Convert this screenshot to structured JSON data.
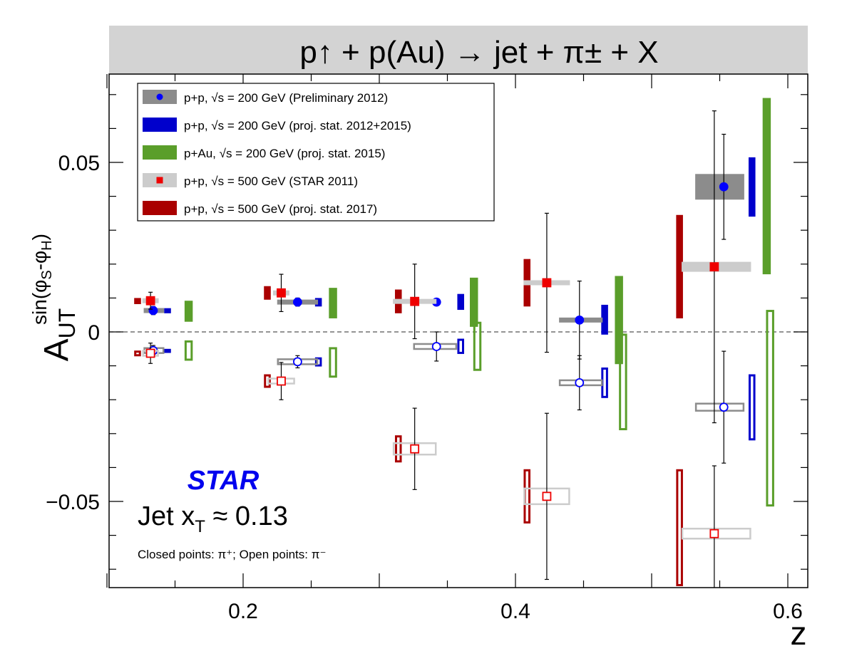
{
  "chart_data": {
    "type": "scatter",
    "title": "p↑ + p(Au) → jet + π± + X",
    "xlabel": "z",
    "ylabel": "A_UT^sin(φS-φH)",
    "xlim": [
      0.09,
      0.62
    ],
    "ylim": [
      -0.075,
      0.072
    ],
    "xticks": [
      {
        "v": 0.2,
        "label": "0.2"
      },
      {
        "v": 0.4,
        "label": "0.4"
      },
      {
        "v": 0.6,
        "label": "0.6"
      }
    ],
    "yticks": [
      {
        "v": 0.05,
        "label": "0.05"
      },
      {
        "v": 0,
        "label": "0"
      },
      {
        "v": -0.05,
        "label": "−0.05"
      }
    ],
    "experiment": "STAR",
    "annotation": "Jet x",
    "annotation_sub": "T",
    "annotation_tail": " ≈ 0.13",
    "note": "Closed points: π⁺; Open points: π⁻",
    "legend_position": "top-left",
    "legend": [
      {
        "label": "p+p, √s = 200 GeV (Preliminary 2012)",
        "swatch": "#8c8c8c",
        "marker": "circle",
        "marker_color": "#0000ff"
      },
      {
        "label": "p+p, √s = 200 GeV (proj. stat. 2012+2015)",
        "swatch": "#0000cc",
        "marker": "none",
        "marker_color": ""
      },
      {
        "label": "p+Au, √s = 200 GeV (proj. stat. 2015)",
        "swatch": "#5a9e2a",
        "marker": "none",
        "marker_color": ""
      },
      {
        "label": "p+p, √s = 500 GeV (STAR 2011)",
        "swatch": "#cccccc",
        "marker": "square",
        "marker_color": "#ee0000"
      },
      {
        "label": "p+p, √s = 500 GeV (proj. stat. 2017)",
        "swatch": "#aa0000",
        "marker": "none",
        "marker_color": ""
      }
    ],
    "colors": {
      "pp200_prelim_sys": "#8c8c8c",
      "pp200_marker": "#0000ff",
      "pp200_proj": "#0000cc",
      "pAu200_proj": "#5a9e2a",
      "pp500_sys": "#cccccc",
      "pp500_marker": "#ee0000",
      "pp500_proj": "#aa0000"
    },
    "series": [
      {
        "name": "p+p, √s = 200 GeV (Preliminary 2012)",
        "charge": "pi+",
        "points": [
          {
            "x": 0.134,
            "y": 0.0063,
            "err": 0.0012,
            "sys_x0": 0.127,
            "sys_x1": 0.142
          },
          {
            "x": 0.24,
            "y": 0.0088,
            "err": 0.0012,
            "sys_x0": 0.225,
            "sys_x1": 0.255
          },
          {
            "x": 0.342,
            "y": 0.0088,
            "err": 0.0
          },
          {
            "x": 0.447,
            "y": 0.0035,
            "err": 0.0115,
            "sys_x0": 0.432,
            "sys_x1": 0.464
          },
          {
            "x": 0.553,
            "y": 0.0428,
            "err": 0.0155,
            "sys_x0": 0.532,
            "sys_x1": 0.568
          }
        ]
      },
      {
        "name": "p+p, √s = 200 GeV (Preliminary 2012)",
        "charge": "pi-",
        "points": [
          {
            "x": 0.134,
            "y": -0.0055,
            "err": 0.0015,
            "sys_x0": 0.127,
            "sys_x1": 0.142
          },
          {
            "x": 0.24,
            "y": -0.0088,
            "err": 0.0018,
            "sys_x0": 0.225,
            "sys_x1": 0.255
          },
          {
            "x": 0.342,
            "y": -0.0043,
            "err": 0.0043,
            "sys_x0": 0.325,
            "sys_x1": 0.357
          },
          {
            "x": 0.447,
            "y": -0.015,
            "err": 0.008,
            "sys_x0": 0.432,
            "sys_x1": 0.464
          },
          {
            "x": 0.553,
            "y": -0.0222,
            "err": 0.0165,
            "sys_x0": 0.532,
            "sys_x1": 0.568
          }
        ]
      },
      {
        "name": "p+p, √s = 500 GeV (STAR 2011)",
        "charge": "pi+",
        "points": [
          {
            "x": 0.132,
            "y": 0.0092,
            "err": 0.0025,
            "sys_x0": 0.126,
            "sys_x1": 0.138
          },
          {
            "x": 0.228,
            "y": 0.0115,
            "err": 0.0055,
            "sys_x0": 0.222,
            "sys_x1": 0.234
          },
          {
            "x": 0.326,
            "y": 0.009,
            "err": 0.011,
            "sys_x0": 0.31,
            "sys_x1": 0.342
          },
          {
            "x": 0.423,
            "y": 0.0145,
            "err": 0.0205,
            "sys_x0": 0.406,
            "sys_x1": 0.44
          },
          {
            "x": 0.546,
            "y": 0.0192,
            "err": 0.046,
            "sys_x0": 0.522,
            "sys_x1": 0.573
          }
        ]
      },
      {
        "name": "p+p, √s = 500 GeV (STAR 2011)",
        "charge": "pi-",
        "points": [
          {
            "x": 0.132,
            "y": -0.0063,
            "err": 0.003,
            "sys_x0": 0.126,
            "sys_x1": 0.138
          },
          {
            "x": 0.228,
            "y": -0.0145,
            "err": 0.0055,
            "sys_x0": 0.218,
            "sys_x1": 0.238
          },
          {
            "x": 0.326,
            "y": -0.0345,
            "err": 0.012,
            "sys_x0": 0.31,
            "sys_x1": 0.342
          },
          {
            "x": 0.423,
            "y": -0.0485,
            "err": 0.0245,
            "sys_x0": 0.406,
            "sys_x1": 0.44
          },
          {
            "x": 0.546,
            "y": -0.0595,
            "err": 0.02,
            "sys_x0": 0.522,
            "sys_x1": 0.573
          }
        ]
      },
      {
        "name": "p+p, √s = 200 GeV (proj. stat. 2012+2015)",
        "charge": "pi+",
        "bars": [
          {
            "x": 0.1445,
            "y0": 0.0055,
            "y1": 0.007,
            "w": 0.005
          },
          {
            "x": 0.2553,
            "y0": 0.0075,
            "y1": 0.01,
            "w": 0.005
          },
          {
            "x": 0.3598,
            "y0": 0.0065,
            "y1": 0.0112,
            "w": 0.005
          },
          {
            "x": 0.4655,
            "y0": -0.0008,
            "y1": 0.008,
            "w": 0.005
          },
          {
            "x": 0.5737,
            "y0": 0.034,
            "y1": 0.0515,
            "w": 0.005
          }
        ]
      },
      {
        "name": "p+p, √s = 200 GeV (proj. stat. 2012+2015)",
        "charge": "pi-",
        "bars": [
          {
            "x": 0.1445,
            "y0": -0.0062,
            "y1": -0.005,
            "w": 0.005
          },
          {
            "x": 0.2553,
            "y0": -0.0102,
            "y1": -0.0075,
            "w": 0.005
          },
          {
            "x": 0.3598,
            "y0": -0.0065,
            "y1": -0.002,
            "w": 0.005
          },
          {
            "x": 0.4655,
            "y0": -0.0195,
            "y1": -0.0105,
            "w": 0.005
          },
          {
            "x": 0.5737,
            "y0": -0.032,
            "y1": -0.0125,
            "w": 0.005
          }
        ]
      },
      {
        "name": "p+Au, √s = 200 GeV (proj. stat. 2015)",
        "charge": "pi+",
        "bars": [
          {
            "x": 0.16,
            "y0": 0.003,
            "y1": 0.0092,
            "w": 0.006
          },
          {
            "x": 0.266,
            "y0": 0.004,
            "y1": 0.013,
            "w": 0.006
          },
          {
            "x": 0.3695,
            "y0": 0.0015,
            "y1": 0.016,
            "w": 0.006
          },
          {
            "x": 0.476,
            "y0": -0.0095,
            "y1": 0.0165,
            "w": 0.006
          },
          {
            "x": 0.5845,
            "y0": 0.017,
            "y1": 0.069,
            "w": 0.006
          }
        ]
      },
      {
        "name": "p+Au, √s = 200 GeV (proj. stat. 2015)",
        "charge": "pi-",
        "bars": [
          {
            "x": 0.16,
            "y0": -0.0085,
            "y1": -0.0025,
            "w": 0.006
          },
          {
            "x": 0.266,
            "y0": -0.0135,
            "y1": -0.0045,
            "w": 0.006
          },
          {
            "x": 0.372,
            "y0": -0.0115,
            "y1": 0.003,
            "w": 0.006
          },
          {
            "x": 0.479,
            "y0": -0.029,
            "y1": -0.0005,
            "w": 0.006
          },
          {
            "x": 0.587,
            "y0": -0.0515,
            "y1": 0.0065,
            "w": 0.006
          }
        ]
      },
      {
        "name": "p+p, √s = 500 GeV (proj. stat. 2017)",
        "charge": "pi+",
        "bars": [
          {
            "x": 0.1225,
            "y0": 0.0082,
            "y1": 0.01,
            "w": 0.005
          },
          {
            "x": 0.2178,
            "y0": 0.0095,
            "y1": 0.0135,
            "w": 0.005
          },
          {
            "x": 0.314,
            "y0": 0.0055,
            "y1": 0.0125,
            "w": 0.005
          },
          {
            "x": 0.4085,
            "y0": 0.0075,
            "y1": 0.0215,
            "w": 0.005
          },
          {
            "x": 0.5205,
            "y0": 0.004,
            "y1": 0.0345,
            "w": 0.005
          }
        ]
      },
      {
        "name": "p+p, √s = 500 GeV (proj. stat. 2017)",
        "charge": "pi-",
        "bars": [
          {
            "x": 0.1225,
            "y0": -0.0072,
            "y1": -0.0055,
            "w": 0.005
          },
          {
            "x": 0.2178,
            "y0": -0.0165,
            "y1": -0.0125,
            "w": 0.005
          },
          {
            "x": 0.314,
            "y0": -0.0385,
            "y1": -0.0305,
            "w": 0.005
          },
          {
            "x": 0.4085,
            "y0": -0.0565,
            "y1": -0.0405,
            "w": 0.005
          },
          {
            "x": 0.5205,
            "y0": -0.075,
            "y1": -0.0405,
            "w": 0.005
          }
        ]
      }
    ]
  }
}
